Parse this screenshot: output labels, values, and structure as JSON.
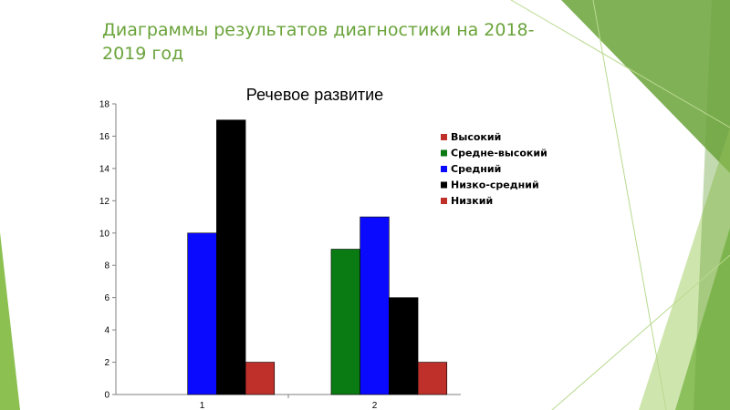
{
  "slide": {
    "title": "Диаграммы результатов диагностики на 2018-2019 год"
  },
  "chart_data": {
    "type": "bar",
    "title": "Речевое развитие",
    "categories": [
      "1",
      "2"
    ],
    "series": [
      {
        "name": "Высокий",
        "color": "#c0302a",
        "values": [
          0,
          0
        ]
      },
      {
        "name": "Средне-высокий",
        "color": "#0a7a12",
        "values": [
          0,
          9
        ]
      },
      {
        "name": "Средний",
        "color": "#0a0aff",
        "values": [
          10,
          11
        ]
      },
      {
        "name": "Низко-средний",
        "color": "#000000",
        "values": [
          17,
          6
        ]
      },
      {
        "name": "Низкий",
        "color": "#c0302a",
        "values": [
          2,
          2
        ]
      }
    ],
    "ylim": [
      0,
      18
    ],
    "yticks": [
      0,
      2,
      4,
      6,
      8,
      10,
      12,
      14,
      16,
      18
    ],
    "grid": false,
    "legend_position": "right"
  }
}
